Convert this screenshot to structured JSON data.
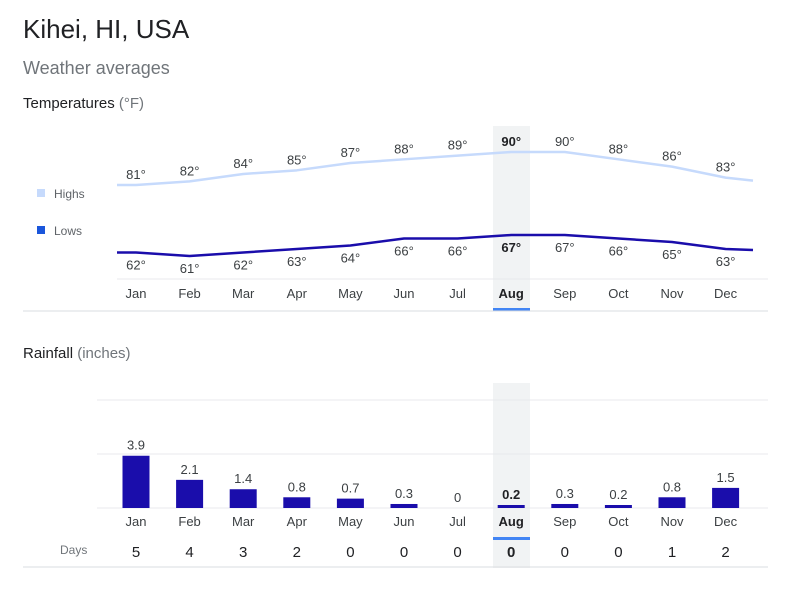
{
  "header": {
    "title": "Kihei, HI, USA",
    "subtitle": "Weather averages"
  },
  "temperatures": {
    "label": "Temperatures",
    "unit": "(°F)"
  },
  "rainfall": {
    "label": "Rainfall",
    "unit": "(inches)",
    "days_label": "Days"
  },
  "selected_month": "Aug",
  "colors": {
    "highs": "#c6dafc",
    "lows": "#1a0dab",
    "bars": "#1a0dab",
    "selected_highlight": "#f1f3f4",
    "selected_underline": "#4285f4"
  },
  "chart_data": [
    {
      "type": "line",
      "title": "Temperatures (°F)",
      "categories": [
        "Jan",
        "Feb",
        "Mar",
        "Apr",
        "May",
        "Jun",
        "Jul",
        "Aug",
        "Sep",
        "Oct",
        "Nov",
        "Dec"
      ],
      "series": [
        {
          "name": "Highs",
          "values": [
            81,
            82,
            84,
            85,
            87,
            88,
            89,
            90,
            90,
            88,
            86,
            83
          ],
          "labels": [
            "81°",
            "82°",
            "84°",
            "85°",
            "87°",
            "88°",
            "89°",
            "90°",
            "90°",
            "88°",
            "86°",
            "83°"
          ]
        },
        {
          "name": "Lows",
          "values": [
            62,
            61,
            62,
            63,
            64,
            66,
            66,
            67,
            67,
            66,
            65,
            63
          ],
          "labels": [
            "62°",
            "61°",
            "62°",
            "63°",
            "64°",
            "66°",
            "66°",
            "67°",
            "67°",
            "66°",
            "65°",
            "63°"
          ]
        }
      ],
      "legend": [
        "Highs",
        "Lows"
      ],
      "legend_position": "left"
    },
    {
      "type": "bar",
      "title": "Rainfall (inches)",
      "categories": [
        "Jan",
        "Feb",
        "Mar",
        "Apr",
        "May",
        "Jun",
        "Jul",
        "Aug",
        "Sep",
        "Oct",
        "Nov",
        "Dec"
      ],
      "values": [
        3.9,
        2.1,
        1.4,
        0.8,
        0.7,
        0.3,
        0,
        0.2,
        0.3,
        0.2,
        0.8,
        1.5
      ],
      "labels": [
        "3.9",
        "2.1",
        "1.4",
        "0.8",
        "0.7",
        "0.3",
        "0",
        "0.2",
        "0.3",
        "0.2",
        "0.8",
        "1.5"
      ],
      "days": [
        "5",
        "4",
        "3",
        "2",
        "0",
        "0",
        "0",
        "0",
        "0",
        "0",
        "1",
        "2"
      ],
      "ylim": [
        0,
        8
      ],
      "grid": true
    }
  ]
}
